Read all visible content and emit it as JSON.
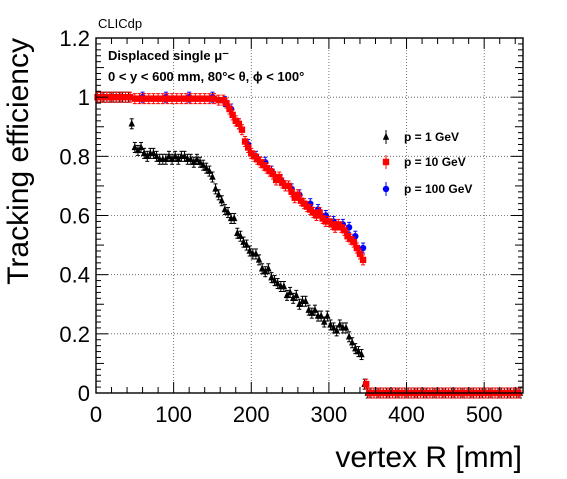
{
  "tag": "CLICdp",
  "annotations": {
    "line1": "Displaced single  μ⁻",
    "line2": "0 < y < 600 mm, 80°<  θ,  ϕ < 100°"
  },
  "chart_data": {
    "type": "scatter",
    "xlabel": "vertex R [mm]",
    "ylabel": "Tracking efficiency",
    "xlim": [
      0,
      550
    ],
    "ylim": [
      0,
      1.2
    ],
    "xticks": [
      "0",
      "100",
      "200",
      "300",
      "400",
      "500"
    ],
    "yticks": [
      "0",
      "0.2",
      "0.4",
      "0.6",
      "0.8",
      "1",
      "1.2"
    ],
    "grid": true,
    "legend_position": "right",
    "series": [
      {
        "name": "p = 1 GeV",
        "color": "#000000",
        "marker": "triangle",
        "points": [
          [
            2,
            1.0
          ],
          [
            6,
            1.0
          ],
          [
            10,
            1.0
          ],
          [
            14,
            1.0
          ],
          [
            18,
            1.0
          ],
          [
            22,
            1.0
          ],
          [
            26,
            1.0
          ],
          [
            30,
            1.0
          ],
          [
            34,
            1.0
          ],
          [
            38,
            1.0
          ],
          [
            42,
            1.0
          ],
          [
            46,
            0.91
          ],
          [
            50,
            0.83
          ],
          [
            54,
            0.82
          ],
          [
            58,
            0.83
          ],
          [
            62,
            0.81
          ],
          [
            66,
            0.8
          ],
          [
            70,
            0.81
          ],
          [
            74,
            0.81
          ],
          [
            78,
            0.8
          ],
          [
            82,
            0.79
          ],
          [
            86,
            0.79
          ],
          [
            90,
            0.79
          ],
          [
            94,
            0.8
          ],
          [
            98,
            0.79
          ],
          [
            102,
            0.8
          ],
          [
            106,
            0.79
          ],
          [
            110,
            0.8
          ],
          [
            114,
            0.8
          ],
          [
            118,
            0.79
          ],
          [
            122,
            0.79
          ],
          [
            126,
            0.78
          ],
          [
            130,
            0.79
          ],
          [
            134,
            0.78
          ],
          [
            138,
            0.77
          ],
          [
            142,
            0.76
          ],
          [
            146,
            0.75
          ],
          [
            150,
            0.73
          ],
          [
            154,
            0.69
          ],
          [
            158,
            0.67
          ],
          [
            162,
            0.65
          ],
          [
            166,
            0.62
          ],
          [
            170,
            0.61
          ],
          [
            174,
            0.59
          ],
          [
            178,
            0.59
          ],
          [
            182,
            0.54
          ],
          [
            186,
            0.53
          ],
          [
            190,
            0.51
          ],
          [
            194,
            0.5
          ],
          [
            198,
            0.48
          ],
          [
            202,
            0.47
          ],
          [
            206,
            0.47
          ],
          [
            210,
            0.45
          ],
          [
            214,
            0.42
          ],
          [
            218,
            0.41
          ],
          [
            222,
            0.42
          ],
          [
            226,
            0.39
          ],
          [
            230,
            0.38
          ],
          [
            234,
            0.37
          ],
          [
            238,
            0.36
          ],
          [
            242,
            0.36
          ],
          [
            246,
            0.33
          ],
          [
            250,
            0.34
          ],
          [
            254,
            0.32
          ],
          [
            258,
            0.33
          ],
          [
            262,
            0.3
          ],
          [
            266,
            0.31
          ],
          [
            270,
            0.31
          ],
          [
            274,
            0.28
          ],
          [
            278,
            0.27
          ],
          [
            282,
            0.28
          ],
          [
            286,
            0.26
          ],
          [
            290,
            0.26
          ],
          [
            294,
            0.24
          ],
          [
            298,
            0.26
          ],
          [
            302,
            0.23
          ],
          [
            306,
            0.22
          ],
          [
            310,
            0.21
          ],
          [
            314,
            0.23
          ],
          [
            318,
            0.22
          ],
          [
            322,
            0.22
          ],
          [
            326,
            0.19
          ],
          [
            330,
            0.17
          ],
          [
            334,
            0.15
          ],
          [
            338,
            0.14
          ],
          [
            342,
            0.13
          ],
          [
            346,
            0.03
          ],
          [
            350,
            0.0
          ],
          [
            354,
            0.0
          ],
          [
            358,
            0.0
          ],
          [
            362,
            0.0
          ],
          [
            366,
            0.0
          ],
          [
            370,
            0.0
          ],
          [
            374,
            0.0
          ],
          [
            378,
            0.0
          ],
          [
            382,
            0.0
          ],
          [
            386,
            0.0
          ],
          [
            390,
            0.0
          ],
          [
            394,
            0.0
          ],
          [
            398,
            0.0
          ],
          [
            402,
            0.0
          ],
          [
            406,
            0.0
          ],
          [
            410,
            0.0
          ],
          [
            414,
            0.0
          ],
          [
            418,
            0.0
          ],
          [
            422,
            0.0
          ],
          [
            426,
            0.0
          ],
          [
            430,
            0.0
          ],
          [
            434,
            0.0
          ],
          [
            438,
            0.0
          ],
          [
            442,
            0.0
          ],
          [
            446,
            0.0
          ],
          [
            450,
            0.0
          ],
          [
            454,
            0.0
          ],
          [
            458,
            0.0
          ],
          [
            462,
            0.0
          ],
          [
            466,
            0.0
          ],
          [
            470,
            0.0
          ],
          [
            474,
            0.0
          ],
          [
            478,
            0.0
          ],
          [
            482,
            0.0
          ],
          [
            486,
            0.0
          ],
          [
            490,
            0.0
          ],
          [
            494,
            0.0
          ],
          [
            498,
            0.0
          ],
          [
            502,
            0.0
          ],
          [
            506,
            0.0
          ],
          [
            510,
            0.0
          ],
          [
            514,
            0.0
          ],
          [
            518,
            0.0
          ],
          [
            522,
            0.0
          ],
          [
            526,
            0.0
          ],
          [
            530,
            0.0
          ],
          [
            534,
            0.0
          ],
          [
            538,
            0.0
          ],
          [
            542,
            0.0
          ],
          [
            546,
            0.0
          ]
        ]
      },
      {
        "name": "p = 10 GeV",
        "color": "#ff0000",
        "marker": "square",
        "points": [
          [
            2,
            1.0
          ],
          [
            8,
            1.0
          ],
          [
            14,
            1.0
          ],
          [
            20,
            1.0
          ],
          [
            26,
            1.0
          ],
          [
            32,
            1.0
          ],
          [
            38,
            1.0
          ],
          [
            44,
            1.0
          ],
          [
            50,
            0.995
          ],
          [
            56,
            0.995
          ],
          [
            62,
            0.995
          ],
          [
            68,
            0.995
          ],
          [
            74,
            0.995
          ],
          [
            80,
            0.995
          ],
          [
            86,
            0.995
          ],
          [
            92,
            0.995
          ],
          [
            98,
            0.995
          ],
          [
            104,
            0.995
          ],
          [
            110,
            0.995
          ],
          [
            116,
            0.995
          ],
          [
            122,
            0.995
          ],
          [
            128,
            0.995
          ],
          [
            134,
            0.995
          ],
          [
            140,
            0.995
          ],
          [
            146,
            0.995
          ],
          [
            152,
            0.995
          ],
          [
            158,
            0.99
          ],
          [
            164,
            0.99
          ],
          [
            168,
            0.98
          ],
          [
            172,
            0.96
          ],
          [
            176,
            0.94
          ],
          [
            180,
            0.92
          ],
          [
            184,
            0.91
          ],
          [
            188,
            0.89
          ],
          [
            192,
            0.85
          ],
          [
            196,
            0.83
          ],
          [
            200,
            0.81
          ],
          [
            204,
            0.8
          ],
          [
            208,
            0.79
          ],
          [
            212,
            0.78
          ],
          [
            216,
            0.77
          ],
          [
            220,
            0.76
          ],
          [
            224,
            0.75
          ],
          [
            228,
            0.74
          ],
          [
            232,
            0.72
          ],
          [
            236,
            0.73
          ],
          [
            240,
            0.71
          ],
          [
            244,
            0.7
          ],
          [
            248,
            0.7
          ],
          [
            252,
            0.68
          ],
          [
            256,
            0.66
          ],
          [
            260,
            0.67
          ],
          [
            264,
            0.65
          ],
          [
            268,
            0.64
          ],
          [
            272,
            0.63
          ],
          [
            276,
            0.62
          ],
          [
            280,
            0.61
          ],
          [
            284,
            0.6
          ],
          [
            288,
            0.61
          ],
          [
            292,
            0.59
          ],
          [
            296,
            0.58
          ],
          [
            300,
            0.58
          ],
          [
            304,
            0.57
          ],
          [
            308,
            0.56
          ],
          [
            312,
            0.57
          ],
          [
            316,
            0.56
          ],
          [
            320,
            0.55
          ],
          [
            324,
            0.53
          ],
          [
            328,
            0.52
          ],
          [
            332,
            0.51
          ],
          [
            336,
            0.49
          ],
          [
            340,
            0.47
          ],
          [
            344,
            0.45
          ],
          [
            348,
            0.03
          ],
          [
            352,
            0.0
          ],
          [
            358,
            0.0
          ],
          [
            364,
            0.0
          ],
          [
            370,
            0.0
          ],
          [
            376,
            0.0
          ],
          [
            382,
            0.0
          ],
          [
            388,
            0.0
          ],
          [
            394,
            0.0
          ],
          [
            400,
            0.0
          ],
          [
            406,
            0.0
          ],
          [
            412,
            0.0
          ],
          [
            418,
            0.0
          ],
          [
            424,
            0.0
          ],
          [
            430,
            0.0
          ],
          [
            436,
            0.0
          ],
          [
            442,
            0.0
          ],
          [
            448,
            0.0
          ],
          [
            454,
            0.0
          ],
          [
            460,
            0.0
          ],
          [
            466,
            0.0
          ],
          [
            472,
            0.0
          ],
          [
            478,
            0.0
          ],
          [
            484,
            0.0
          ],
          [
            490,
            0.0
          ],
          [
            496,
            0.0
          ],
          [
            502,
            0.0
          ],
          [
            508,
            0.0
          ],
          [
            514,
            0.0
          ],
          [
            520,
            0.0
          ],
          [
            526,
            0.0
          ],
          [
            532,
            0.0
          ],
          [
            538,
            0.0
          ],
          [
            544,
            0.0
          ]
        ]
      },
      {
        "name": "p = 100 GeV",
        "color": "#0000ff",
        "marker": "circle",
        "points": [
          [
            60,
            1.0
          ],
          [
            90,
            1.0
          ],
          [
            120,
            1.0
          ],
          [
            150,
            1.0
          ],
          [
            166,
            0.985
          ],
          [
            174,
            0.96
          ],
          [
            184,
            0.91
          ],
          [
            196,
            0.84
          ],
          [
            206,
            0.8
          ],
          [
            218,
            0.78
          ],
          [
            226,
            0.75
          ],
          [
            238,
            0.72
          ],
          [
            252,
            0.69
          ],
          [
            262,
            0.67
          ],
          [
            276,
            0.64
          ],
          [
            286,
            0.62
          ],
          [
            296,
            0.6
          ],
          [
            306,
            0.58
          ],
          [
            318,
            0.57
          ],
          [
            326,
            0.56
          ],
          [
            334,
            0.53
          ],
          [
            344,
            0.49
          ]
        ]
      }
    ]
  }
}
